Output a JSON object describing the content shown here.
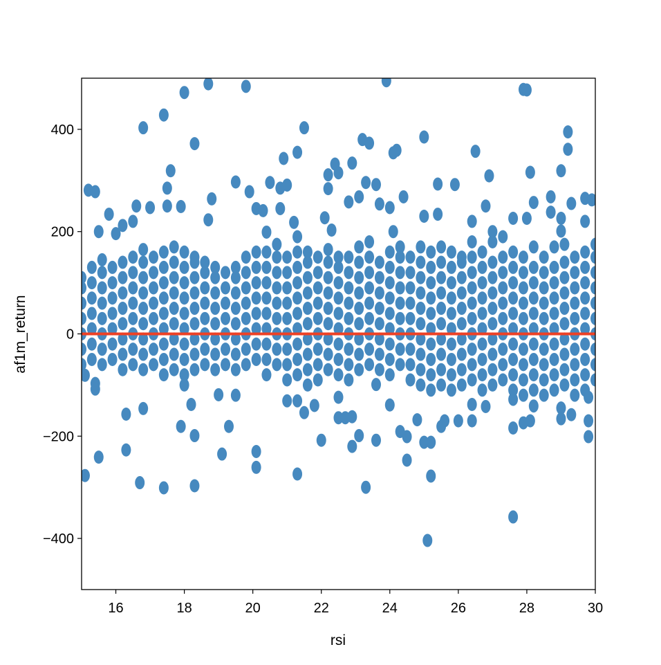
{
  "chart_data": {
    "type": "scatter",
    "xlabel": "rsi",
    "ylabel": "af1m_return",
    "xlim": [
      15,
      30
    ],
    "ylim": [
      -500,
      500
    ],
    "xticks": [
      16,
      18,
      20,
      22,
      24,
      26,
      28,
      30
    ],
    "yticks": [
      -400,
      -200,
      0,
      200,
      400
    ],
    "ytick_labels": [
      "−400",
      "−200",
      "0",
      "200",
      "400"
    ],
    "grid": false,
    "colors": {
      "points": "#4689bf",
      "hline": "#ee4125"
    },
    "hline": 0,
    "outliers": [
      [
        18.0,
        472
      ],
      [
        18.7,
        489
      ],
      [
        19.8,
        484
      ],
      [
        23.9,
        495
      ],
      [
        27.9,
        478
      ],
      [
        28.0,
        477
      ],
      [
        16.8,
        403
      ],
      [
        17.4,
        428
      ],
      [
        18.3,
        372
      ],
      [
        21.5,
        403
      ],
      [
        25.0,
        385
      ],
      [
        23.2,
        380
      ],
      [
        23.4,
        373
      ],
      [
        24.2,
        359
      ],
      [
        24.1,
        354
      ],
      [
        29.2,
        395
      ],
      [
        29.2,
        361
      ],
      [
        26.5,
        357
      ],
      [
        21.3,
        355
      ],
      [
        20.9,
        343
      ],
      [
        17.6,
        319
      ],
      [
        28.1,
        316
      ],
      [
        29.0,
        319
      ],
      [
        17.5,
        285
      ],
      [
        22.4,
        332
      ],
      [
        22.9,
        334
      ],
      [
        22.5,
        315
      ],
      [
        22.2,
        311
      ],
      [
        19.5,
        297
      ],
      [
        20.5,
        296
      ],
      [
        19.9,
        278
      ],
      [
        20.8,
        285
      ],
      [
        21.0,
        291
      ],
      [
        26.9,
        309
      ],
      [
        15.2,
        281
      ],
      [
        15.4,
        278
      ],
      [
        18.8,
        264
      ],
      [
        22.2,
        284
      ],
      [
        23.6,
        292
      ],
      [
        23.3,
        296
      ],
      [
        25.4,
        293
      ],
      [
        25.9,
        292
      ],
      [
        29.7,
        265
      ],
      [
        29.9,
        262
      ],
      [
        28.7,
        268
      ],
      [
        28.2,
        257
      ],
      [
        29.3,
        255
      ],
      [
        26.8,
        250
      ],
      [
        17.0,
        247
      ],
      [
        16.6,
        250
      ],
      [
        17.9,
        249
      ],
      [
        17.5,
        250
      ],
      [
        15.8,
        234
      ],
      [
        20.1,
        245
      ],
      [
        20.3,
        241
      ],
      [
        20.8,
        245
      ],
      [
        24.0,
        247
      ],
      [
        24.4,
        268
      ],
      [
        23.7,
        254
      ],
      [
        22.8,
        258
      ],
      [
        23.1,
        268
      ],
      [
        15.5,
        200
      ],
      [
        16.0,
        196
      ],
      [
        16.2,
        212
      ],
      [
        16.5,
        220
      ],
      [
        18.7,
        223
      ],
      [
        22.1,
        227
      ],
      [
        21.2,
        218
      ],
      [
        20.4,
        199
      ],
      [
        22.3,
        203
      ],
      [
        24.1,
        200
      ],
      [
        25.0,
        230
      ],
      [
        25.4,
        234
      ],
      [
        26.4,
        220
      ],
      [
        27.6,
        226
      ],
      [
        28.0,
        226
      ],
      [
        28.7,
        238
      ],
      [
        29.0,
        226
      ],
      [
        29.7,
        220
      ],
      [
        29.0,
        201
      ],
      [
        15.1,
        -81
      ],
      [
        15.4,
        -97
      ],
      [
        15.4,
        -108
      ],
      [
        15.5,
        -241
      ],
      [
        16.3,
        -157
      ],
      [
        16.3,
        -227
      ],
      [
        16.8,
        -146
      ],
      [
        16.7,
        -291
      ],
      [
        17.4,
        -301
      ],
      [
        15.1,
        -277
      ],
      [
        18.0,
        -100
      ],
      [
        18.2,
        -138
      ],
      [
        17.9,
        -181
      ],
      [
        18.3,
        -199
      ],
      [
        18.3,
        -297
      ],
      [
        19.0,
        -119
      ],
      [
        19.1,
        -235
      ],
      [
        19.3,
        -181
      ],
      [
        19.5,
        -120
      ],
      [
        20.1,
        -230
      ],
      [
        20.1,
        -261
      ],
      [
        21.0,
        -131
      ],
      [
        21.3,
        -274
      ],
      [
        22.0,
        -208
      ],
      [
        21.3,
        -131
      ],
      [
        21.5,
        -154
      ],
      [
        21.8,
        -140
      ],
      [
        22.5,
        -124
      ],
      [
        22.5,
        -164
      ],
      [
        22.9,
        -162
      ],
      [
        22.7,
        -164
      ],
      [
        22.9,
        -220
      ],
      [
        23.1,
        -199
      ],
      [
        23.3,
        -300
      ],
      [
        23.6,
        -208
      ],
      [
        23.6,
        -99
      ],
      [
        24.0,
        -139
      ],
      [
        24.3,
        -191
      ],
      [
        24.5,
        -201
      ],
      [
        24.5,
        -247
      ],
      [
        24.8,
        -168
      ],
      [
        25.0,
        -212
      ],
      [
        25.2,
        -212
      ],
      [
        25.2,
        -278
      ],
      [
        25.1,
        -404
      ],
      [
        25.5,
        -181
      ],
      [
        25.6,
        -170
      ],
      [
        26.0,
        -170
      ],
      [
        26.4,
        -170
      ],
      [
        26.4,
        -138
      ],
      [
        27.6,
        -128
      ],
      [
        27.6,
        -184
      ],
      [
        27.6,
        -358
      ],
      [
        28.1,
        -170
      ],
      [
        27.9,
        -174
      ],
      [
        29.0,
        -166
      ],
      [
        29.3,
        -158
      ],
      [
        29.0,
        -145
      ],
      [
        29.8,
        -124
      ],
      [
        29.8,
        -170
      ],
      [
        29.8,
        -201
      ],
      [
        28.2,
        -141
      ],
      [
        26.8,
        -142
      ]
    ],
    "band": [
      {
        "x": 15.0,
        "y": [
          -60,
          -30,
          0,
          30,
          60,
          90,
          110
        ]
      },
      {
        "x": 15.3,
        "y": [
          -50,
          -20,
          10,
          40,
          70,
          100,
          130
        ]
      },
      {
        "x": 15.6,
        "y": [
          -60,
          -30,
          0,
          30,
          60,
          90,
          120,
          145
        ]
      },
      {
        "x": 15.9,
        "y": [
          -50,
          -20,
          10,
          40,
          70,
          100,
          130
        ]
      },
      {
        "x": 16.2,
        "y": [
          -70,
          -40,
          -10,
          20,
          50,
          80,
          110,
          140
        ]
      },
      {
        "x": 16.5,
        "y": [
          -60,
          -30,
          0,
          30,
          60,
          90,
          120,
          150
        ]
      },
      {
        "x": 16.8,
        "y": [
          -70,
          -40,
          -10,
          20,
          50,
          80,
          110,
          140,
          165
        ]
      },
      {
        "x": 17.1,
        "y": [
          -60,
          -30,
          0,
          30,
          60,
          90,
          120,
          150
        ]
      },
      {
        "x": 17.4,
        "y": [
          -80,
          -50,
          -20,
          10,
          40,
          70,
          100,
          130,
          160
        ]
      },
      {
        "x": 17.7,
        "y": [
          -70,
          -40,
          -10,
          20,
          50,
          80,
          110,
          140,
          170
        ]
      },
      {
        "x": 18.0,
        "y": [
          -80,
          -50,
          -20,
          10,
          40,
          70,
          100,
          130,
          160
        ]
      },
      {
        "x": 18.3,
        "y": [
          -70,
          -40,
          -10,
          20,
          50,
          80,
          110,
          140,
          150
        ]
      },
      {
        "x": 18.6,
        "y": [
          -60,
          -30,
          0,
          30,
          60,
          90,
          120,
          140
        ]
      },
      {
        "x": 18.9,
        "y": [
          -70,
          -40,
          -10,
          20,
          50,
          80,
          110,
          130
        ]
      },
      {
        "x": 19.2,
        "y": [
          -60,
          -30,
          0,
          30,
          60,
          90,
          120
        ]
      },
      {
        "x": 19.5,
        "y": [
          -70,
          -40,
          -10,
          20,
          50,
          80,
          110,
          130
        ]
      },
      {
        "x": 19.8,
        "y": [
          -60,
          -30,
          0,
          30,
          60,
          90,
          120,
          150
        ]
      },
      {
        "x": 20.1,
        "y": [
          -50,
          -20,
          10,
          40,
          70,
          100,
          130,
          160
        ]
      },
      {
        "x": 20.4,
        "y": [
          -80,
          -50,
          -20,
          10,
          40,
          70,
          100,
          130,
          160
        ]
      },
      {
        "x": 20.7,
        "y": [
          -60,
          -30,
          0,
          30,
          60,
          90,
          120,
          150,
          175
        ]
      },
      {
        "x": 21.0,
        "y": [
          -90,
          -60,
          -30,
          0,
          30,
          60,
          90,
          120,
          150
        ]
      },
      {
        "x": 21.3,
        "y": [
          -80,
          -50,
          -20,
          10,
          40,
          70,
          100,
          130,
          160,
          190
        ]
      },
      {
        "x": 21.6,
        "y": [
          -100,
          -70,
          -40,
          -10,
          20,
          50,
          80,
          110,
          140,
          160
        ]
      },
      {
        "x": 21.9,
        "y": [
          -90,
          -60,
          -30,
          0,
          30,
          60,
          90,
          120,
          150
        ]
      },
      {
        "x": 22.2,
        "y": [
          -70,
          -40,
          -10,
          20,
          50,
          80,
          110,
          140,
          165
        ]
      },
      {
        "x": 22.5,
        "y": [
          -80,
          -50,
          -20,
          10,
          40,
          70,
          100,
          130,
          150
        ]
      },
      {
        "x": 22.8,
        "y": [
          -90,
          -60,
          -30,
          0,
          30,
          60,
          90,
          120,
          150
        ]
      },
      {
        "x": 23.1,
        "y": [
          -70,
          -40,
          -10,
          20,
          50,
          80,
          110,
          140,
          170
        ]
      },
      {
        "x": 23.4,
        "y": [
          -60,
          -30,
          0,
          30,
          60,
          90,
          120,
          150,
          180
        ]
      },
      {
        "x": 23.7,
        "y": [
          -70,
          -40,
          -10,
          20,
          50,
          80,
          110,
          140
        ]
      },
      {
        "x": 24.0,
        "y": [
          -80,
          -50,
          -20,
          10,
          40,
          70,
          100,
          130,
          160
        ]
      },
      {
        "x": 24.3,
        "y": [
          -60,
          -30,
          0,
          30,
          60,
          90,
          120,
          150,
          170
        ]
      },
      {
        "x": 24.6,
        "y": [
          -90,
          -60,
          -30,
          0,
          30,
          60,
          90,
          120,
          150
        ]
      },
      {
        "x": 24.9,
        "y": [
          -100,
          -70,
          -40,
          -10,
          20,
          50,
          80,
          110,
          140,
          170
        ]
      },
      {
        "x": 25.2,
        "y": [
          -110,
          -80,
          -50,
          -20,
          10,
          40,
          70,
          100,
          130,
          160
        ]
      },
      {
        "x": 25.5,
        "y": [
          -100,
          -70,
          -40,
          -10,
          20,
          50,
          80,
          110,
          140,
          170
        ]
      },
      {
        "x": 25.8,
        "y": [
          -110,
          -80,
          -50,
          -20,
          10,
          40,
          70,
          100,
          130,
          160
        ]
      },
      {
        "x": 26.1,
        "y": [
          -100,
          -70,
          -40,
          -10,
          20,
          50,
          80,
          110,
          140,
          150
        ]
      },
      {
        "x": 26.4,
        "y": [
          -90,
          -60,
          -30,
          0,
          30,
          60,
          90,
          120,
          150,
          180
        ]
      },
      {
        "x": 26.7,
        "y": [
          -110,
          -80,
          -50,
          -20,
          10,
          40,
          70,
          100,
          130,
          160
        ]
      },
      {
        "x": 27.0,
        "y": [
          -100,
          -70,
          -40,
          -10,
          20,
          50,
          80,
          110,
          140,
          180,
          200
        ]
      },
      {
        "x": 27.3,
        "y": [
          -90,
          -60,
          -30,
          0,
          30,
          60,
          90,
          120,
          150,
          190
        ]
      },
      {
        "x": 27.6,
        "y": [
          -110,
          -80,
          -50,
          -20,
          10,
          40,
          70,
          100,
          130,
          160
        ]
      },
      {
        "x": 27.9,
        "y": [
          -120,
          -90,
          -60,
          -30,
          0,
          30,
          60,
          90,
          120,
          150
        ]
      },
      {
        "x": 28.2,
        "y": [
          -110,
          -80,
          -50,
          -20,
          10,
          40,
          70,
          100,
          130,
          170
        ]
      },
      {
        "x": 28.5,
        "y": [
          -120,
          -90,
          -60,
          -30,
          0,
          30,
          60,
          90,
          120,
          150
        ]
      },
      {
        "x": 28.8,
        "y": [
          -110,
          -80,
          -50,
          -20,
          10,
          40,
          70,
          100,
          130,
          170
        ]
      },
      {
        "x": 29.1,
        "y": [
          -100,
          -70,
          -40,
          -10,
          20,
          50,
          80,
          110,
          140,
          175
        ]
      },
      {
        "x": 29.4,
        "y": [
          -120,
          -90,
          -60,
          -30,
          0,
          30,
          60,
          90,
          120,
          150
        ]
      },
      {
        "x": 29.7,
        "y": [
          -110,
          -80,
          -50,
          -20,
          10,
          40,
          70,
          100,
          130,
          160
        ]
      },
      {
        "x": 30.0,
        "y": [
          -90,
          -60,
          -30,
          0,
          30,
          60,
          90,
          120,
          150,
          175
        ]
      }
    ]
  }
}
